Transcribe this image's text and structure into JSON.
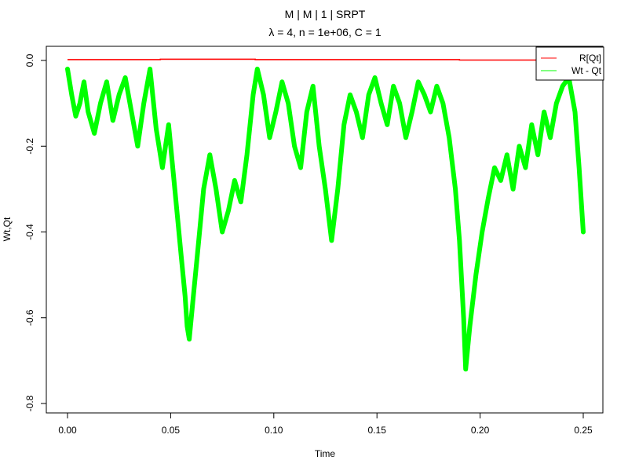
{
  "chart_data": {
    "type": "line",
    "title": "M | M | 1 | SRPT",
    "subtitle": "λ = 4, n = 1e+06, C = 1",
    "xlabel": "Time",
    "ylabel": "Wt,Qt",
    "xlim": [
      0.0,
      0.25
    ],
    "ylim": [
      -0.8,
      0.0
    ],
    "x_ticks": [
      "0.00",
      "0.05",
      "0.10",
      "0.15",
      "0.20",
      "0.25"
    ],
    "y_ticks": [
      "-0.8",
      "-0.6",
      "-0.4",
      "-0.2",
      "0.0"
    ],
    "grid": false,
    "legend_position": "top-right",
    "series": [
      {
        "name": "R[Qt]",
        "color": "#ff0000",
        "x": [
          0.0,
          0.045,
          0.045,
          0.091,
          0.091,
          0.19,
          0.19,
          0.25
        ],
        "y": [
          0.002,
          0.002,
          0.003,
          0.003,
          0.002,
          0.002,
          0.001,
          0.001
        ]
      },
      {
        "name": "Wt - Qt",
        "color": "#00ff00",
        "x": [
          0.0,
          0.002,
          0.004,
          0.006,
          0.008,
          0.01,
          0.013,
          0.016,
          0.019,
          0.022,
          0.025,
          0.028,
          0.031,
          0.034,
          0.037,
          0.04,
          0.043,
          0.046,
          0.049,
          0.052,
          0.055,
          0.057,
          0.058,
          0.059,
          0.061,
          0.063,
          0.066,
          0.069,
          0.072,
          0.075,
          0.078,
          0.081,
          0.084,
          0.087,
          0.09,
          0.092,
          0.095,
          0.098,
          0.101,
          0.104,
          0.107,
          0.11,
          0.113,
          0.116,
          0.119,
          0.122,
          0.125,
          0.128,
          0.131,
          0.134,
          0.137,
          0.14,
          0.143,
          0.146,
          0.149,
          0.152,
          0.155,
          0.158,
          0.161,
          0.164,
          0.167,
          0.17,
          0.173,
          0.176,
          0.179,
          0.182,
          0.185,
          0.188,
          0.19,
          0.192,
          0.193,
          0.195,
          0.198,
          0.201,
          0.204,
          0.207,
          0.21,
          0.213,
          0.216,
          0.219,
          0.222,
          0.225,
          0.228,
          0.231,
          0.234,
          0.237,
          0.24,
          0.243,
          0.246,
          0.248,
          0.25
        ],
        "y": [
          -0.02,
          -0.08,
          -0.13,
          -0.1,
          -0.05,
          -0.12,
          -0.17,
          -0.1,
          -0.05,
          -0.14,
          -0.08,
          -0.04,
          -0.12,
          -0.2,
          -0.1,
          -0.02,
          -0.16,
          -0.25,
          -0.15,
          -0.3,
          -0.45,
          -0.55,
          -0.62,
          -0.65,
          -0.55,
          -0.45,
          -0.3,
          -0.22,
          -0.3,
          -0.4,
          -0.35,
          -0.28,
          -0.33,
          -0.22,
          -0.08,
          -0.02,
          -0.08,
          -0.18,
          -0.12,
          -0.05,
          -0.1,
          -0.2,
          -0.25,
          -0.12,
          -0.06,
          -0.2,
          -0.3,
          -0.42,
          -0.3,
          -0.15,
          -0.08,
          -0.12,
          -0.18,
          -0.08,
          -0.04,
          -0.1,
          -0.15,
          -0.06,
          -0.1,
          -0.18,
          -0.12,
          -0.05,
          -0.08,
          -0.12,
          -0.06,
          -0.1,
          -0.18,
          -0.3,
          -0.42,
          -0.6,
          -0.72,
          -0.62,
          -0.5,
          -0.4,
          -0.32,
          -0.25,
          -0.28,
          -0.22,
          -0.3,
          -0.2,
          -0.25,
          -0.15,
          -0.22,
          -0.12,
          -0.18,
          -0.1,
          -0.06,
          -0.04,
          -0.12,
          -0.25,
          -0.4
        ]
      }
    ]
  }
}
